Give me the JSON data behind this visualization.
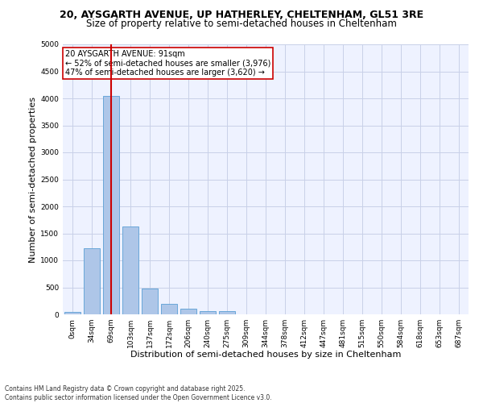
{
  "title1": "20, AYSGARTH AVENUE, UP HATHERLEY, CHELTENHAM, GL51 3RE",
  "title2": "Size of property relative to semi-detached houses in Cheltenham",
  "xlabel": "Distribution of semi-detached houses by size in Cheltenham",
  "ylabel": "Number of semi-detached properties",
  "categories": [
    "0sqm",
    "34sqm",
    "69sqm",
    "103sqm",
    "137sqm",
    "172sqm",
    "206sqm",
    "240sqm",
    "275sqm",
    "309sqm",
    "344sqm",
    "378sqm",
    "412sqm",
    "447sqm",
    "481sqm",
    "515sqm",
    "550sqm",
    "584sqm",
    "618sqm",
    "653sqm",
    "687sqm"
  ],
  "bar_values": [
    50,
    1230,
    4040,
    1630,
    480,
    190,
    110,
    65,
    55,
    0,
    0,
    0,
    0,
    0,
    0,
    0,
    0,
    0,
    0,
    0,
    0
  ],
  "bar_color": "#aec6e8",
  "bar_edge_color": "#5a9fd4",
  "property_bin_index": 2,
  "vline_color": "#cc0000",
  "annotation_text": "20 AYSGARTH AVENUE: 91sqm\n← 52% of semi-detached houses are smaller (3,976)\n47% of semi-detached houses are larger (3,620) →",
  "annotation_box_color": "#ffffff",
  "annotation_box_edge": "#cc0000",
  "footer": "Contains HM Land Registry data © Crown copyright and database right 2025.\nContains public sector information licensed under the Open Government Licence v3.0.",
  "ylim": [
    0,
    5000
  ],
  "yticks": [
    0,
    500,
    1000,
    1500,
    2000,
    2500,
    3000,
    3500,
    4000,
    4500,
    5000
  ],
  "background_color": "#eef2ff",
  "grid_color": "#c8d0e8",
  "title1_fontsize": 9,
  "title2_fontsize": 8.5,
  "xlabel_fontsize": 8,
  "ylabel_fontsize": 8,
  "tick_fontsize": 6.5,
  "annot_fontsize": 7
}
